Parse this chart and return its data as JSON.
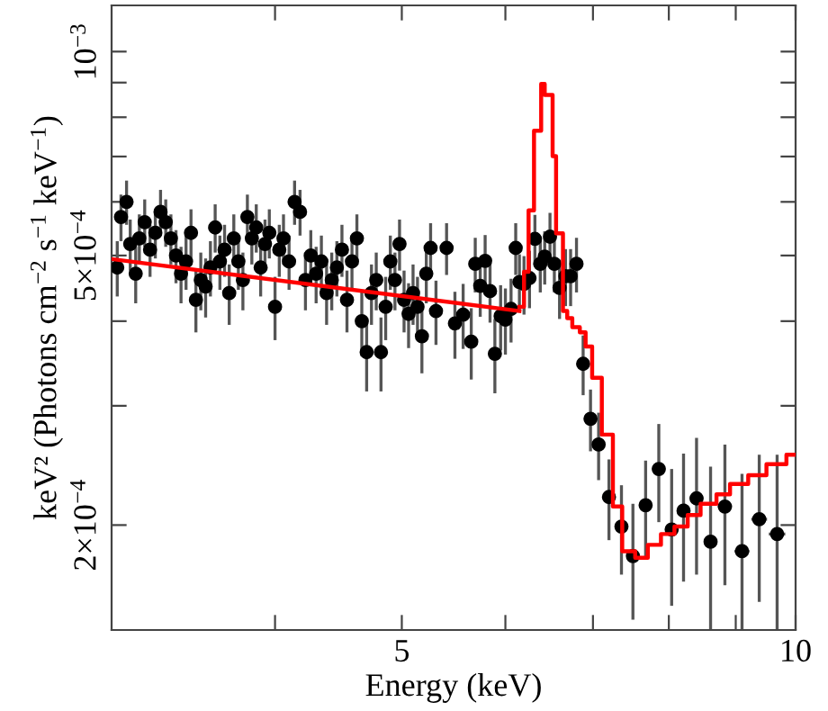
{
  "chart_data": {
    "type": "scatter",
    "xlabel": "Energy (keV)",
    "ylabel": "keV² (Photons cm$^{−2}$ s$^{−1}$ keV$^{−1}$)",
    "log": "xy",
    "xlim": [
      3,
      10
    ],
    "ylim": [
      0.00014,
      0.00117
    ],
    "xticks": [
      {
        "value": 4,
        "label": null
      },
      5,
      {
        "value": 6,
        "label": null
      },
      {
        "value": 7,
        "label": null
      },
      {
        "value": 8,
        "label": null
      },
      {
        "value": 9,
        "label": null
      },
      10
    ],
    "yticks": [
      {
        "value": 0.0002,
        "label": "2×10$^{−4}$"
      },
      {
        "value": 0.0003,
        "label": null
      },
      {
        "value": 0.0004,
        "label": null
      },
      {
        "value": 0.0005,
        "label": "5×10$^{−4}$"
      },
      {
        "value": 0.0006,
        "label": null
      },
      {
        "value": 0.0007,
        "label": null
      },
      {
        "value": 0.0008,
        "label": null
      },
      {
        "value": 0.0009,
        "label": null
      },
      {
        "value": 0.001,
        "label": "10$^{−3}$"
      }
    ],
    "grid": false,
    "legend": false,
    "series": [
      {
        "color": "#000000",
        "marker": "circle",
        "x": [
          3.03,
          3.05,
          3.08,
          3.1,
          3.13,
          3.15,
          3.18,
          3.21,
          3.24,
          3.27,
          3.3,
          3.33,
          3.36,
          3.39,
          3.42,
          3.45,
          3.48,
          3.51,
          3.54,
          3.57,
          3.6,
          3.63,
          3.66,
          3.69,
          3.72,
          3.75,
          3.78,
          3.81,
          3.84,
          3.87,
          3.9,
          3.93,
          3.96,
          4.0,
          4.03,
          4.06,
          4.1,
          4.14,
          4.18,
          4.22,
          4.26,
          4.3,
          4.34,
          4.38,
          4.42,
          4.46,
          4.5,
          4.54,
          4.58,
          4.62,
          4.66,
          4.7,
          4.74,
          4.78,
          4.82,
          4.86,
          4.9,
          4.94,
          4.98,
          5.02,
          5.06,
          5.1,
          5.14,
          5.18,
          5.22,
          5.26,
          5.31,
          5.41,
          5.49,
          5.57,
          5.65,
          5.69,
          5.74,
          5.79,
          5.84,
          5.89,
          5.95,
          6.0,
          6.06,
          6.11,
          6.15,
          6.2,
          6.26,
          6.32,
          6.38,
          6.43,
          6.49,
          6.54,
          6.6,
          6.67,
          6.73,
          6.8,
          6.88,
          6.97,
          7.07,
          7.2,
          7.36,
          7.51,
          7.68,
          7.86,
          8.04,
          8.21,
          8.4,
          8.61,
          8.83,
          9.1,
          9.38,
          9.68
        ],
        "values": [
          0.00048,
          0.00057,
          0.0006,
          0.00052,
          0.00047,
          0.00053,
          0.00056,
          0.00051,
          0.00054,
          0.00058,
          0.00056,
          0.00053,
          0.0005,
          0.00047,
          0.00049,
          0.00054,
          0.00043,
          0.00046,
          0.00045,
          0.00048,
          0.00055,
          0.00049,
          0.00051,
          0.00044,
          0.00053,
          0.00049,
          0.00046,
          0.00057,
          0.00053,
          0.00055,
          0.00048,
          0.00052,
          0.00054,
          0.00042,
          0.00051,
          0.00053,
          0.00049,
          0.0006,
          0.00058,
          0.00046,
          0.0005,
          0.00047,
          0.00049,
          0.00044,
          0.00046,
          0.00048,
          0.00051,
          0.00043,
          0.00049,
          0.00053,
          0.0004,
          0.00036,
          0.00044,
          0.00046,
          0.00036,
          0.00042,
          0.00049,
          0.00046,
          0.00052,
          0.00043,
          0.00041,
          0.00044,
          0.00042,
          0.00038,
          0.00047,
          0.000513,
          0.000414,
          0.000513,
          0.000397,
          0.000409,
          0.000373,
          0.000486,
          0.000451,
          0.000491,
          0.000443,
          0.000358,
          0.000407,
          0.000402,
          0.000417,
          0.000513,
          0.000457,
          0.000454,
          0.000463,
          0.000529,
          0.000486,
          0.000498,
          0.000533,
          0.000486,
          0.000448,
          0.000466,
          0.000466,
          0.000486,
          0.000346,
          0.000287,
          0.000263,
          0.00022,
          0.000199,
          0.00018,
          0.000214,
          0.000242,
          0.000197,
          0.00021,
          0.000219,
          0.000189,
          0.000213,
          0.000183,
          0.000204,
          0.000194
        ],
        "errors": [
          4.5e-05,
          4.5e-05,
          4.5e-05,
          4.5e-05,
          4.5e-05,
          4.5e-05,
          4.5e-05,
          4.5e-05,
          4.5e-05,
          4.5e-05,
          4.5e-05,
          4.5e-05,
          4.5e-05,
          4.5e-05,
          4.5e-05,
          4.5e-05,
          4.5e-05,
          4.5e-05,
          4.5e-05,
          4.5e-05,
          4.5e-05,
          4.5e-05,
          4.5e-05,
          4.5e-05,
          4.5e-05,
          4.5e-05,
          4.5e-05,
          4.5e-05,
          4.5e-05,
          4.5e-05,
          4.5e-05,
          4.5e-05,
          4.5e-05,
          4.5e-05,
          4.5e-05,
          4.5e-05,
          4.5e-05,
          4.5e-05,
          4.5e-05,
          4.5e-05,
          4.5e-05,
          4.5e-05,
          4.5e-05,
          4.5e-05,
          4.5e-05,
          4.5e-05,
          4.5e-05,
          4.5e-05,
          4.5e-05,
          4.5e-05,
          4.5e-05,
          4.5e-05,
          4.5e-05,
          4.5e-05,
          4.5e-05,
          4.5e-05,
          4.5e-05,
          4.5e-05,
          4.5e-05,
          4.5e-05,
          4.5e-05,
          4.5e-05,
          4.5e-05,
          4.5e-05,
          4.5e-05,
          4.5e-05,
          4.5e-05,
          4.5e-05,
          4.5e-05,
          4.5e-05,
          4.5e-05,
          4.5e-05,
          4.5e-05,
          4.5e-05,
          4.5e-05,
          4.5e-05,
          4.5e-05,
          4.5e-05,
          4.5e-05,
          4.5e-05,
          4.5e-05,
          4.5e-05,
          4.5e-05,
          4.5e-05,
          4.5e-05,
          4.5e-05,
          4.5e-05,
          4.5e-05,
          4.5e-05,
          4.5e-05,
          4.5e-05,
          4.5e-05,
          3.5e-05,
          3e-05,
          3e-05,
          3e-05,
          3e-05,
          3.5e-05,
          3.5e-05,
          4e-05,
          4.5e-05,
          4.5e-05,
          5e-05,
          5.5e-05,
          5e-05,
          5.5e-05,
          5e-05,
          6e-05
        ],
        "xerrors": [
          null,
          null,
          null,
          null,
          null,
          null,
          null,
          null,
          null,
          null,
          null,
          null,
          null,
          null,
          null,
          null,
          null,
          null,
          null,
          null,
          null,
          null,
          null,
          null,
          null,
          null,
          null,
          null,
          null,
          null,
          null,
          null,
          null,
          null,
          null,
          null,
          null,
          null,
          null,
          null,
          null,
          null,
          null,
          null,
          null,
          null,
          null,
          null,
          null,
          null,
          null,
          null,
          null,
          null,
          null,
          null,
          null,
          null,
          null,
          null,
          null,
          null,
          null,
          null,
          null,
          null,
          null,
          null,
          null,
          null,
          null,
          null,
          null,
          null,
          null,
          null,
          null,
          null,
          null,
          null,
          null,
          null,
          null,
          null,
          null,
          null,
          null,
          null,
          null,
          null,
          null,
          null,
          0.04,
          0.04,
          0.05,
          0.06,
          0.07,
          0.07,
          0.08,
          0.09,
          0.09,
          0.09,
          0.1,
          0.1,
          0.11,
          0.12,
          0.13,
          0.14
        ]
      },
      {
        "type": "line",
        "color": "#ff0000",
        "x": [
          3.0,
          6.15
        ],
        "values": [
          0.000494,
          0.000414
        ]
      },
      {
        "type": "step",
        "color": "#ff0000",
        "x": [
          6.15,
          6.2,
          6.25,
          6.31,
          6.39,
          6.43,
          6.52,
          6.56,
          6.64,
          6.69,
          6.75,
          6.84,
          6.91,
          6.99,
          7.11,
          7.25,
          7.37,
          7.54,
          7.71,
          7.89,
          8.08,
          8.27,
          8.46,
          8.7,
          8.91,
          9.2,
          9.5,
          9.84,
          10
        ],
        "values": [
          0.00042,
          0.000473,
          0.000583,
          0.000764,
          0.000896,
          0.000863,
          0.000701,
          0.000539,
          0.000414,
          0.000404,
          0.000392,
          0.000385,
          0.000367,
          0.00033,
          0.000272,
          0.000213,
          0.000183,
          0.000179,
          0.000187,
          0.000194,
          0.000199,
          0.000207,
          0.000215,
          0.000222,
          0.00023,
          0.000237,
          0.000246,
          0.000254,
          0.000254
        ]
      }
    ]
  }
}
